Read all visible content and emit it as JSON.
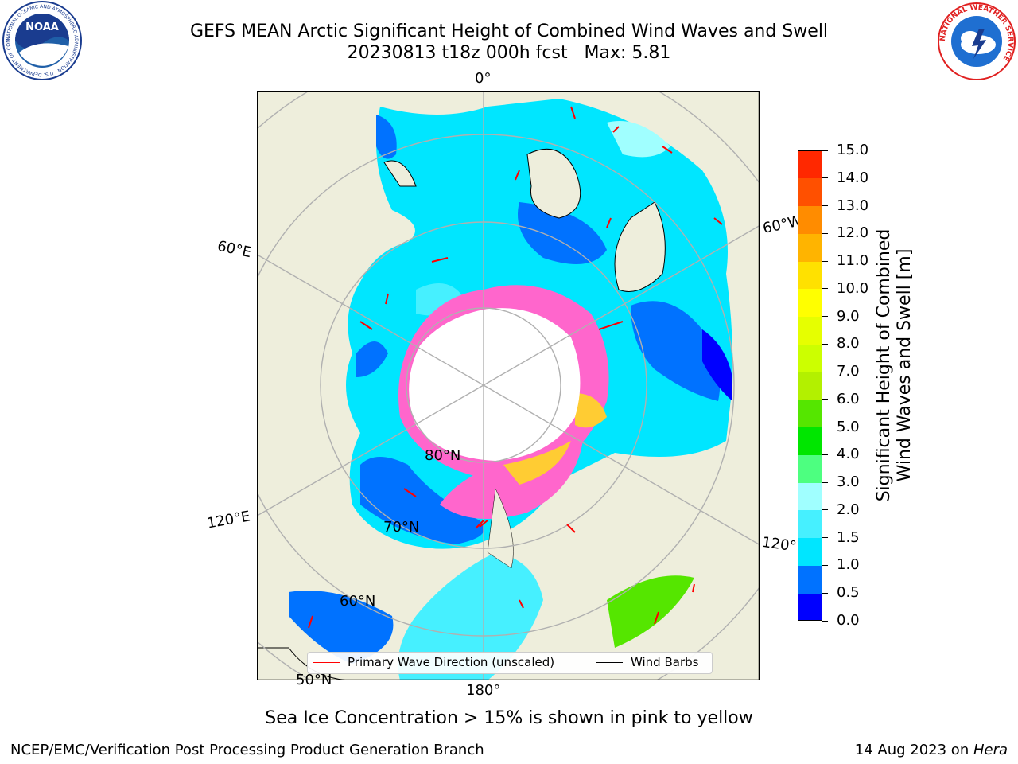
{
  "header": {
    "title_line1": "GEFS MEAN Arctic Significant Height of Combined Wind Waves and Swell",
    "title_line2": "20230813 t18z 000h fcst   Max: 5.81"
  },
  "logos": {
    "noaa_text": "NOAA",
    "noaa_ring_text": "NATIONAL OCEANIC AND ATMOSPHERIC ADMINISTRATION · U.S. DEPARTMENT OF COMMERCE",
    "nws_ring_text": "NATIONAL WEATHER SERVICE"
  },
  "map": {
    "meridian_labels": {
      "deg0": "0°",
      "deg60e": "60°E",
      "deg60w": "60°W",
      "deg120e": "120°E",
      "deg120w": "120°W",
      "deg180": "180°"
    },
    "parallel_labels": {
      "n80": "80°N",
      "n70": "70°N",
      "n60": "60°N",
      "n50": "50°N"
    },
    "colors": {
      "land": "#eeeedc",
      "ice_pink": "#ff66cc",
      "ice_yellow": "#ffcc33",
      "arrow": "#ff0000",
      "gridline": "#b0b0b0"
    }
  },
  "legend": {
    "wave_label": "Primary Wave Direction (unscaled)",
    "barb_label": "Wind Barbs"
  },
  "colorbar": {
    "label_line1": "Significant Height of Combined",
    "label_line2": "Wind Waves and Swell [m]",
    "ticks": [
      "0.0",
      "0.5",
      "1.0",
      "1.5",
      "2.0",
      "3.0",
      "4.0",
      "5.0",
      "6.0",
      "7.0",
      "8.0",
      "9.0",
      "10.0",
      "11.0",
      "12.0",
      "13.0",
      "14.0",
      "15.0"
    ],
    "colors": [
      "#0000ff",
      "#0072ff",
      "#00e6ff",
      "#46f0ff",
      "#a0ffff",
      "#4dff80",
      "#00e600",
      "#55e600",
      "#b3f000",
      "#ccff00",
      "#e6ff00",
      "#ffff00",
      "#ffe100",
      "#ffb400",
      "#ff8c00",
      "#ff5000",
      "#ff2800"
    ]
  },
  "caption": "Sea Ice Concentration > 15% is shown in pink to yellow",
  "footer": {
    "left": "NCEP/EMC/Verification Post Processing Product Generation Branch",
    "right_date": "14 Aug 2023 on ",
    "right_machine": "Hera"
  }
}
